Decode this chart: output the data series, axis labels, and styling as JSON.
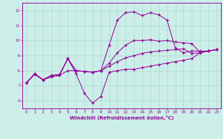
{
  "xlabel": "Windchill (Refroidissement éolien,°C)",
  "bg_color": "#cceee8",
  "grid_color": "#aad8d0",
  "line_color": "#990099",
  "xlim": [
    -0.5,
    23.5
  ],
  "ylim": [
    5.5,
    12.5
  ],
  "xticks": [
    0,
    1,
    2,
    3,
    4,
    5,
    6,
    7,
    8,
    9,
    10,
    11,
    12,
    13,
    14,
    15,
    16,
    17,
    18,
    19,
    20,
    21,
    22,
    23
  ],
  "yticks": [
    6,
    7,
    8,
    9,
    10,
    11,
    12
  ],
  "series1": [
    [
      0,
      7.2
    ],
    [
      1,
      7.8
    ],
    [
      2,
      7.4
    ],
    [
      3,
      7.6
    ],
    [
      4,
      7.7
    ],
    [
      5,
      8.8
    ],
    [
      6,
      7.8
    ],
    [
      7,
      6.5
    ],
    [
      8,
      5.85
    ],
    [
      9,
      6.3
    ],
    [
      10,
      7.9
    ],
    [
      11,
      8.0
    ],
    [
      12,
      8.1
    ],
    [
      13,
      8.1
    ],
    [
      14,
      8.2
    ],
    [
      15,
      8.3
    ],
    [
      16,
      8.4
    ],
    [
      17,
      8.5
    ],
    [
      18,
      8.6
    ],
    [
      19,
      8.7
    ],
    [
      20,
      8.8
    ],
    [
      21,
      9.2
    ],
    [
      22,
      9.3
    ],
    [
      23,
      9.4
    ]
  ],
  "series2": [
    [
      0,
      7.2
    ],
    [
      1,
      7.8
    ],
    [
      2,
      7.4
    ],
    [
      3,
      7.6
    ],
    [
      4,
      7.7
    ],
    [
      5,
      8.8
    ],
    [
      6,
      8.0
    ],
    [
      7,
      7.95
    ],
    [
      8,
      7.9
    ],
    [
      9,
      8.0
    ],
    [
      10,
      9.7
    ],
    [
      11,
      11.35
    ],
    [
      12,
      11.85
    ],
    [
      13,
      11.9
    ],
    [
      14,
      11.65
    ],
    [
      15,
      11.85
    ],
    [
      16,
      11.7
    ],
    [
      17,
      11.35
    ],
    [
      18,
      9.5
    ],
    [
      19,
      9.2
    ],
    [
      20,
      9.3
    ],
    [
      21,
      9.3
    ],
    [
      22,
      9.3
    ],
    [
      23,
      9.4
    ]
  ],
  "series3": [
    [
      0,
      7.2
    ],
    [
      1,
      7.8
    ],
    [
      2,
      7.4
    ],
    [
      3,
      7.7
    ],
    [
      4,
      7.75
    ],
    [
      5,
      8.8
    ],
    [
      6,
      8.0
    ],
    [
      7,
      7.95
    ],
    [
      8,
      7.9
    ],
    [
      9,
      8.0
    ],
    [
      10,
      8.5
    ],
    [
      11,
      9.2
    ],
    [
      12,
      9.7
    ],
    [
      13,
      10.0
    ],
    [
      14,
      10.0
    ],
    [
      15,
      10.05
    ],
    [
      16,
      9.95
    ],
    [
      17,
      10.0
    ],
    [
      18,
      9.9
    ],
    [
      19,
      9.85
    ],
    [
      20,
      9.8
    ],
    [
      21,
      9.2
    ],
    [
      22,
      9.3
    ],
    [
      23,
      9.4
    ]
  ],
  "series4": [
    [
      0,
      7.2
    ],
    [
      1,
      7.75
    ],
    [
      2,
      7.4
    ],
    [
      3,
      7.6
    ],
    [
      4,
      7.7
    ],
    [
      5,
      8.0
    ],
    [
      6,
      8.0
    ],
    [
      7,
      7.95
    ],
    [
      8,
      7.9
    ],
    [
      9,
      8.0
    ],
    [
      10,
      8.3
    ],
    [
      11,
      8.6
    ],
    [
      12,
      8.85
    ],
    [
      13,
      9.0
    ],
    [
      14,
      9.15
    ],
    [
      15,
      9.25
    ],
    [
      16,
      9.3
    ],
    [
      17,
      9.35
    ],
    [
      18,
      9.4
    ],
    [
      19,
      9.45
    ],
    [
      20,
      9.15
    ],
    [
      21,
      9.2
    ],
    [
      22,
      9.3
    ],
    [
      23,
      9.4
    ]
  ]
}
